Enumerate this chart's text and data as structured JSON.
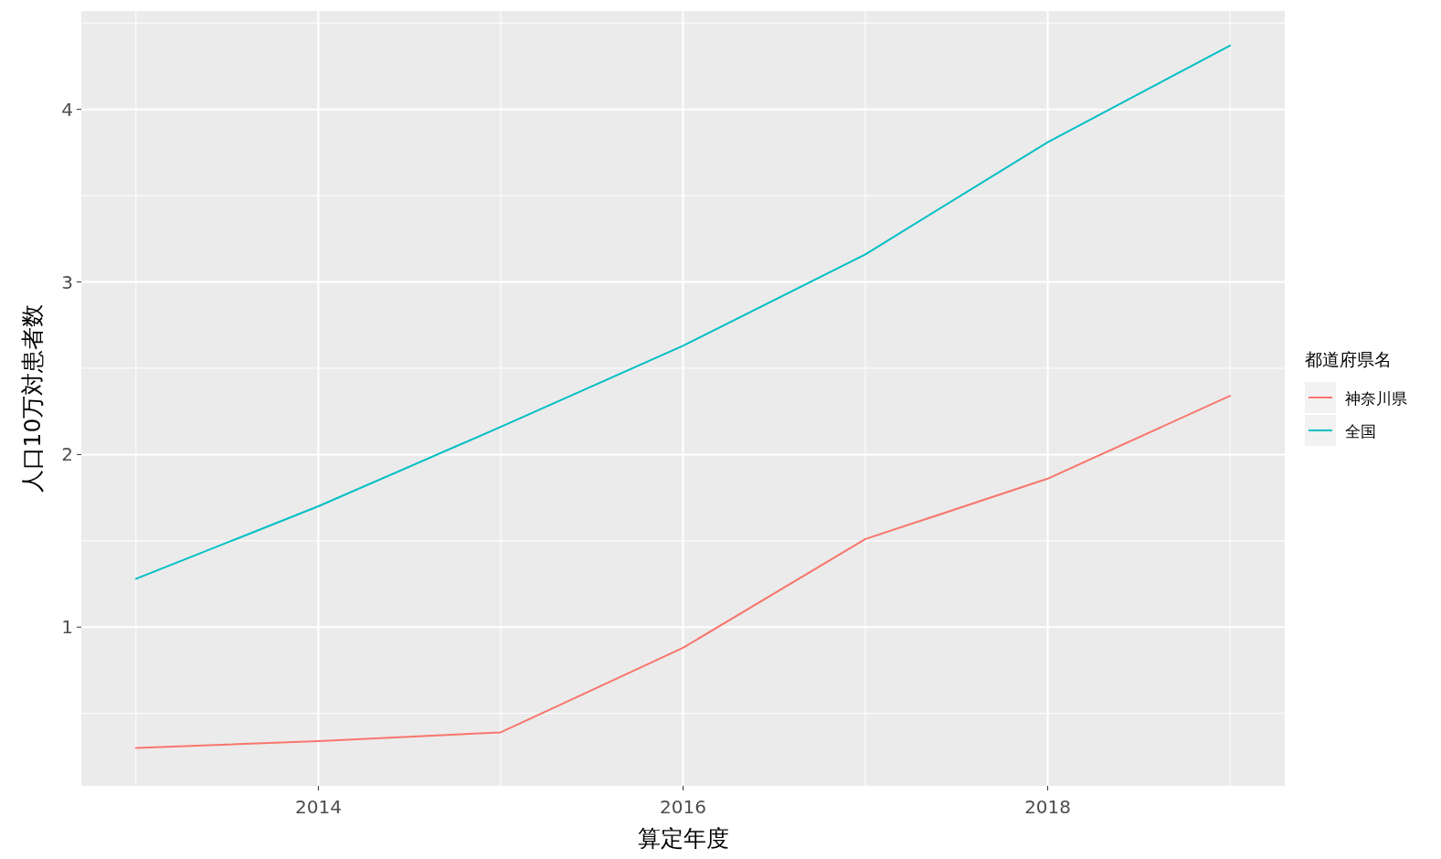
{
  "chart_data": {
    "type": "line",
    "xlabel": "算定年度",
    "ylabel": "人口10万対患者数",
    "legend_title": "都道府県名",
    "x": [
      2013,
      2014,
      2015,
      2016,
      2017,
      2018,
      2019
    ],
    "series": [
      {
        "name": "神奈川県",
        "color": "#f8766d",
        "values": [
          0.3,
          0.34,
          0.39,
          0.88,
          1.51,
          1.86,
          2.34
        ]
      },
      {
        "name": "全国",
        "color": "#00bfc4",
        "values": [
          1.28,
          1.7,
          2.16,
          2.63,
          3.16,
          3.81,
          4.37
        ]
      }
    ],
    "xlim": [
      2012.7,
      2019.3
    ],
    "xticks": [
      2014,
      2016,
      2018
    ],
    "ylim": [
      0.08,
      4.57
    ],
    "yticks": [
      1,
      2,
      3,
      4
    ],
    "grid": true,
    "legend": "right"
  }
}
